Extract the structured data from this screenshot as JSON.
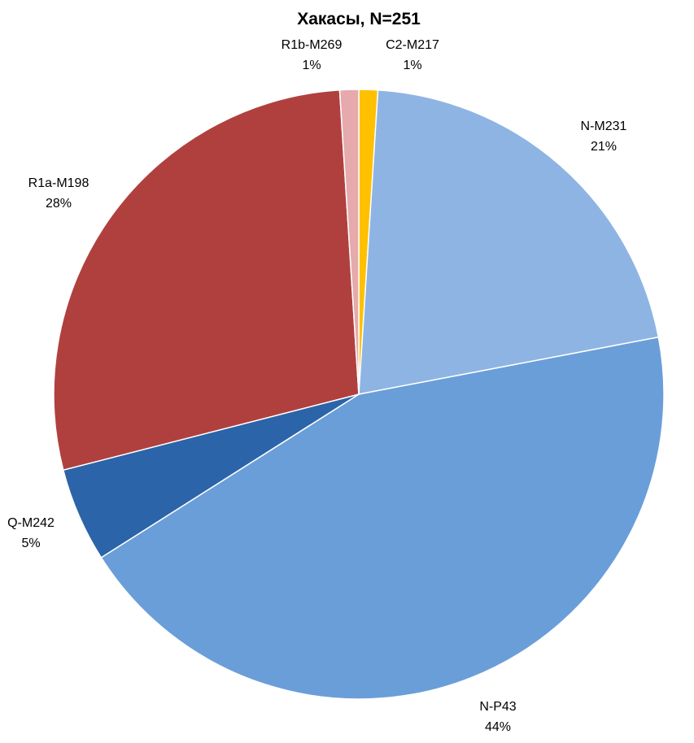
{
  "chart_data": {
    "type": "pie",
    "title": "Хакасы, N=251",
    "start_angle_deg": 0,
    "direction": "clockwise",
    "legend": "none",
    "slices": [
      {
        "name": "C2-M217",
        "value": 1,
        "label_pct": "1%",
        "color": "#FFC000"
      },
      {
        "name": "N-M231",
        "value": 21,
        "label_pct": "21%",
        "color": "#8EB4E3"
      },
      {
        "name": "N-P43",
        "value": 44,
        "label_pct": "44%",
        "color": "#6A9ED9"
      },
      {
        "name": "Q-M242",
        "value": 5,
        "label_pct": "5%",
        "color": "#2B64A8"
      },
      {
        "name": "R1a-M198",
        "value": 28,
        "label_pct": "28%",
        "color": "#B0403E"
      },
      {
        "name": "R1b-M269",
        "value": 1,
        "label_pct": "1%",
        "color": "#E6A9AC"
      }
    ]
  }
}
